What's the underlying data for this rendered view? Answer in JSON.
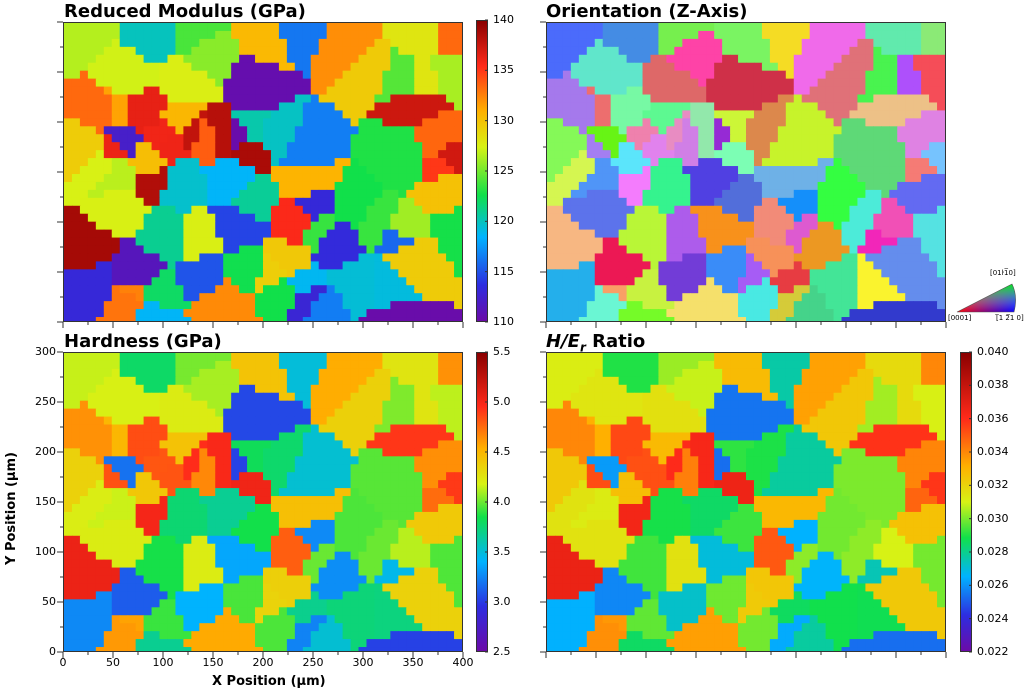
{
  "panels": {
    "modulus": {
      "title": "Reduced Modulus (GPa)",
      "colorbar_ticks": [
        "140",
        "135",
        "130",
        "125",
        "120",
        "115",
        "110"
      ]
    },
    "orientation": {
      "title": "Orientation (Z-Axis)",
      "legend": {
        "top": "[01ŀ1̅0]",
        "left": "[0001]",
        "right": "[̅1 2̅1 0]"
      }
    },
    "hardness": {
      "title": "Hardness (GPa)",
      "colorbar_ticks": [
        "5.5",
        "5.0",
        "4.5",
        "4.0",
        "3.5",
        "3.0",
        "2.5"
      ]
    },
    "ratio": {
      "title_main": "H/E",
      "title_sub": "r",
      "title_rest": " Ratio",
      "colorbar_ticks": [
        "0.040",
        "0.038",
        "0.036",
        "0.034",
        "0.032",
        "0.030",
        "0.028",
        "0.026",
        "0.024",
        "0.022"
      ]
    }
  },
  "axes": {
    "x_title": "X Position (μm)",
    "y_title": "Y Position (μm)",
    "x_ticks": [
      "0",
      "50",
      "100",
      "150",
      "200",
      "250",
      "300",
      "350",
      "400"
    ],
    "y_ticks": [
      "300",
      "250",
      "200",
      "150",
      "100",
      "50",
      "0"
    ]
  },
  "chart_data": [
    {
      "type": "heatmap",
      "title": "Reduced Modulus (GPa)",
      "colorbar_range": [
        110,
        140
      ],
      "x_range": [
        0,
        400
      ],
      "y_range": [
        0,
        300
      ]
    },
    {
      "type": "heatmap",
      "title": "Orientation (Z-Axis)",
      "x_range": [
        0,
        400
      ],
      "y_range": [
        0,
        300
      ]
    },
    {
      "type": "heatmap",
      "title": "Hardness (GPa)",
      "colorbar_range": [
        2.5,
        5.5
      ],
      "x_range": [
        0,
        400
      ],
      "y_range": [
        0,
        300
      ],
      "xlabel": "X Position (μm)",
      "ylabel": "Y Position (μm)"
    },
    {
      "type": "heatmap",
      "title": "H/Er Ratio",
      "colorbar_range": [
        0.022,
        0.04
      ],
      "x_range": [
        0,
        400
      ],
      "y_range": [
        0,
        300
      ]
    }
  ]
}
